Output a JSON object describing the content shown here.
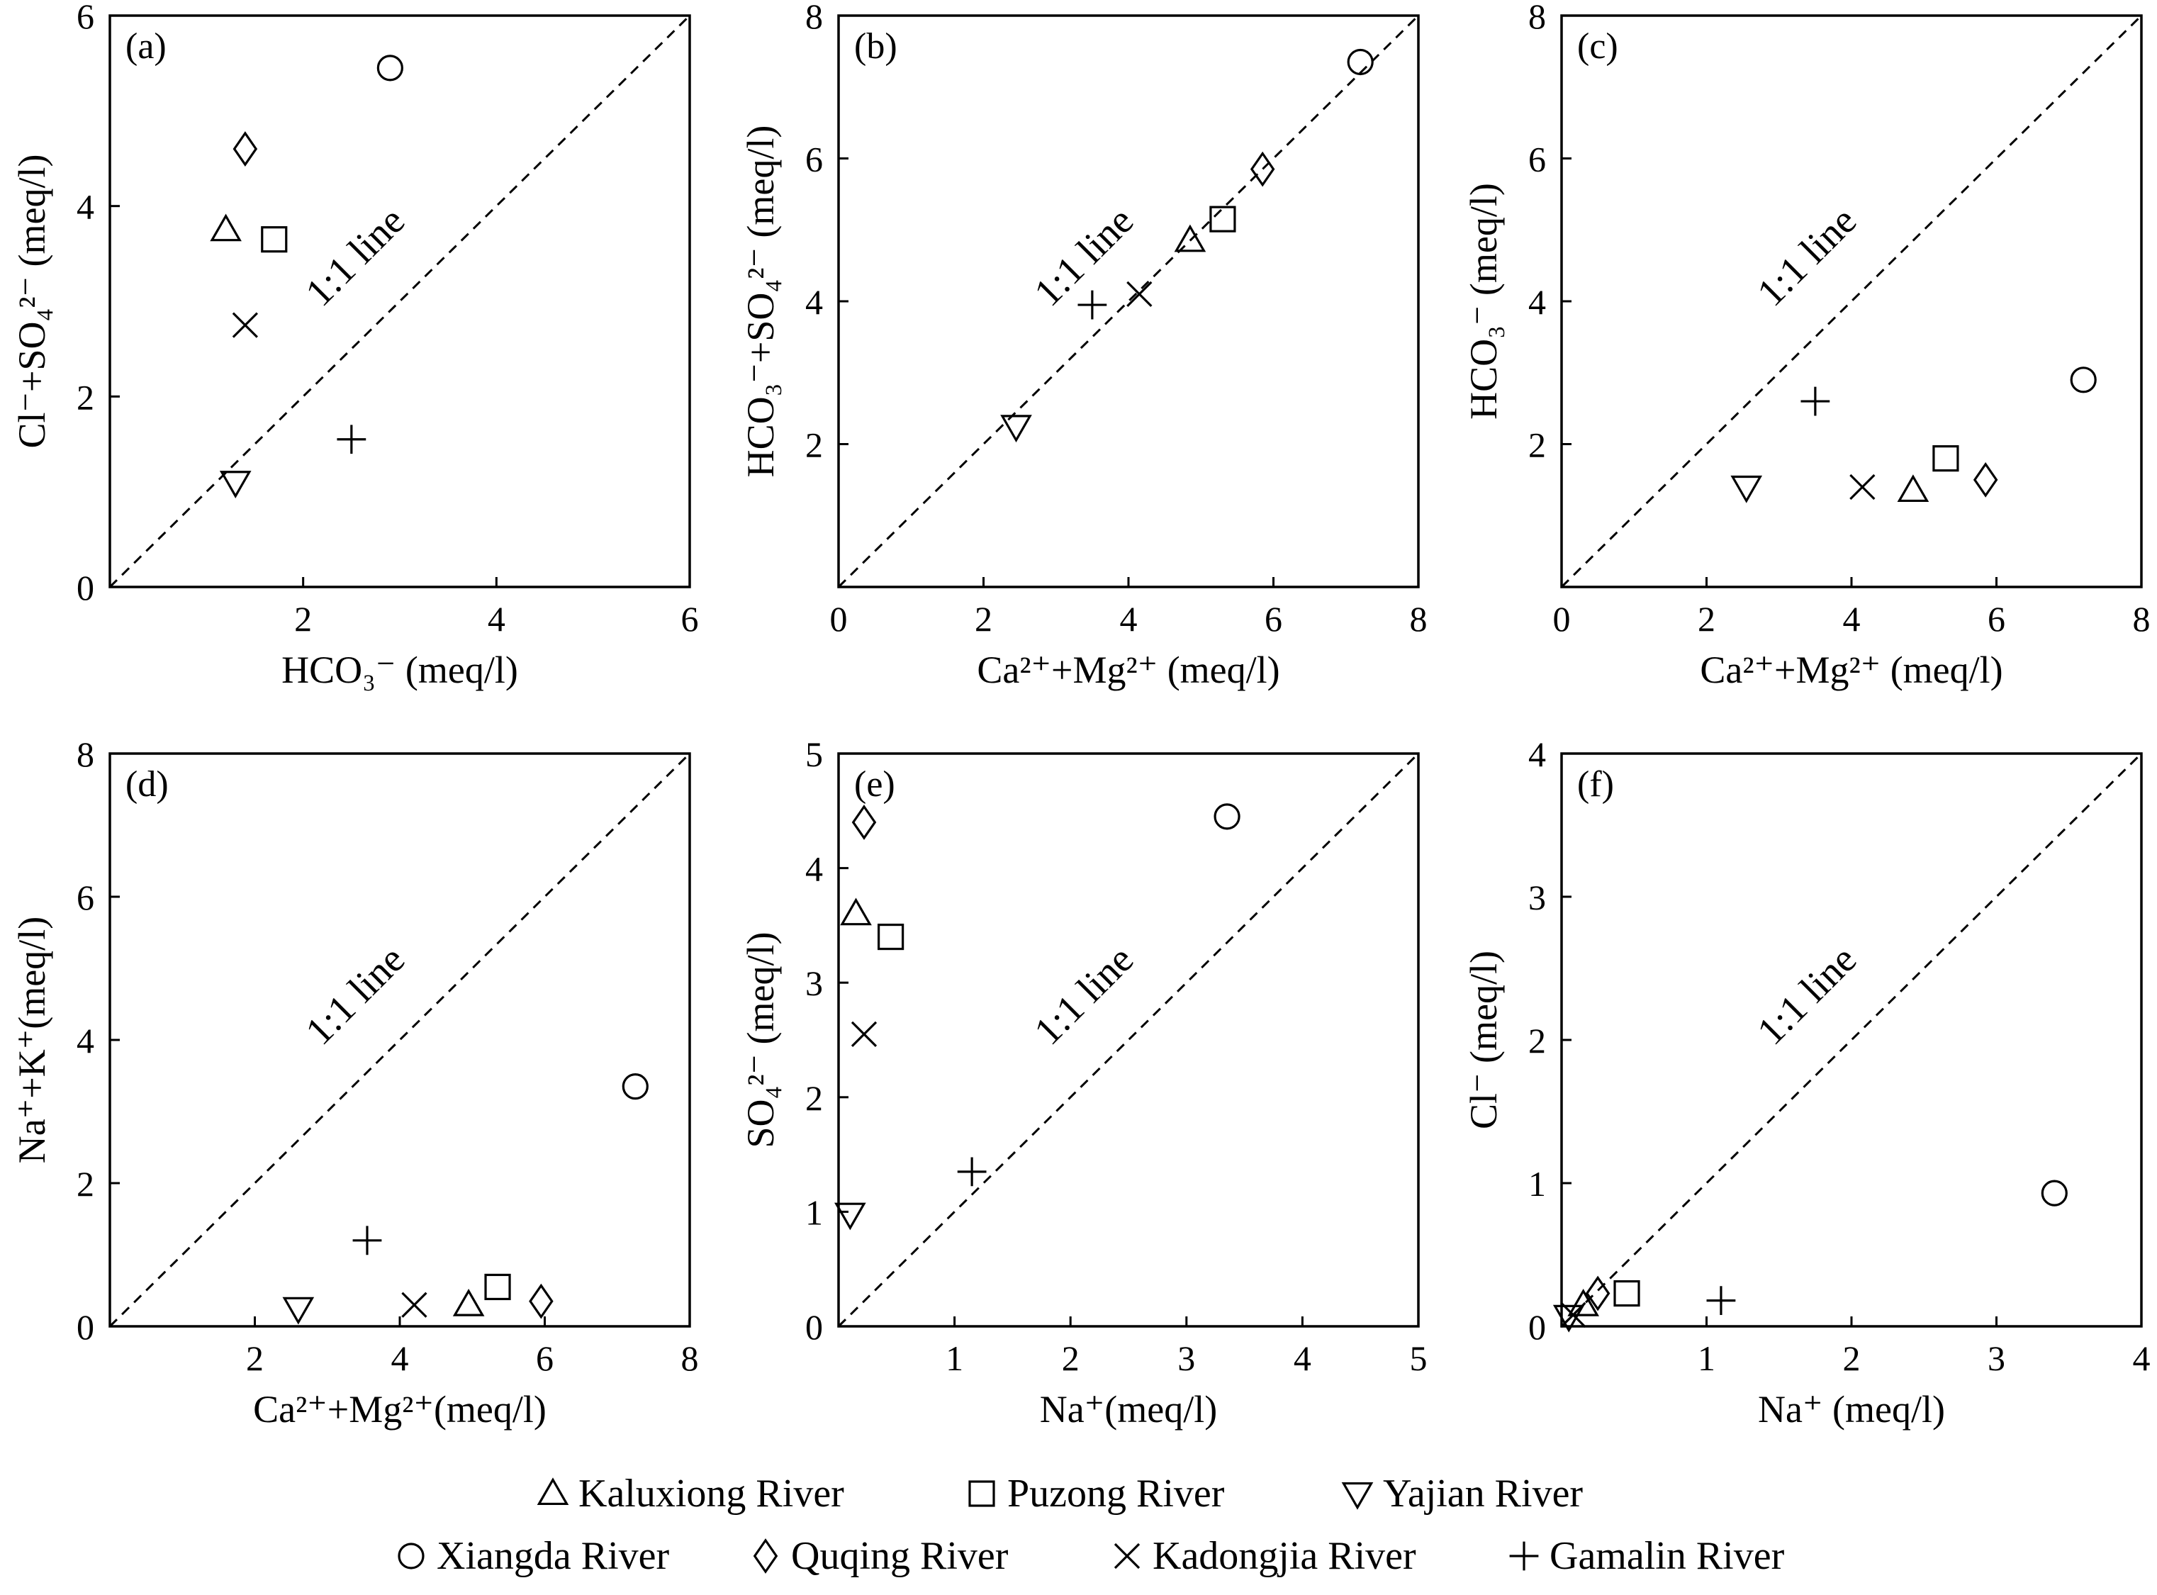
{
  "chart_data": [
    {
      "type": "scatter",
      "panel_label": "(a)",
      "xlabel": "HCO₃⁻ (meq/l)",
      "ylabel": "Cl⁻+SO₄²⁻ (meq/l)",
      "xlim": [
        0,
        6
      ],
      "ylim": [
        0,
        6
      ],
      "xticks": [
        2,
        4,
        6
      ],
      "xtick_labels": [
        "2",
        "4",
        "6"
      ],
      "yticks": [
        0,
        2,
        4,
        6
      ],
      "ytick_labels": [
        "0",
        "2",
        "4",
        "6"
      ],
      "reference_label": "1:1 line",
      "points": [
        {
          "river": "Kaluxiong River",
          "x": 1.2,
          "y": 3.75
        },
        {
          "river": "Puzong River",
          "x": 1.7,
          "y": 3.65
        },
        {
          "river": "Yajian River",
          "x": 1.3,
          "y": 1.1
        },
        {
          "river": "Xiangda River",
          "x": 2.9,
          "y": 5.45
        },
        {
          "river": "Quqing River",
          "x": 1.4,
          "y": 4.6
        },
        {
          "river": "Kadongjia River",
          "x": 1.4,
          "y": 2.75
        },
        {
          "river": "Gamalin River",
          "x": 2.5,
          "y": 1.55
        }
      ]
    },
    {
      "type": "scatter",
      "panel_label": "(b)",
      "xlabel": "Ca²⁺+Mg²⁺ (meq/l)",
      "ylabel": "HCO₃⁻+SO₄²⁻ (meq/l)",
      "xlim": [
        0,
        8
      ],
      "ylim": [
        0,
        8
      ],
      "xticks": [
        0,
        2,
        4,
        6,
        8
      ],
      "xtick_labels": [
        "0",
        "2",
        "4",
        "6",
        "8"
      ],
      "yticks": [
        2,
        4,
        6,
        8
      ],
      "ytick_labels": [
        "2",
        "4",
        "6",
        "8"
      ],
      "reference_label": "1:1 line",
      "points": [
        {
          "river": "Kaluxiong River",
          "x": 4.85,
          "y": 4.85
        },
        {
          "river": "Puzong River",
          "x": 5.3,
          "y": 5.15
        },
        {
          "river": "Yajian River",
          "x": 2.45,
          "y": 2.25
        },
        {
          "river": "Xiangda River",
          "x": 7.2,
          "y": 7.35
        },
        {
          "river": "Quqing River",
          "x": 5.85,
          "y": 5.85
        },
        {
          "river": "Kadongjia River",
          "x": 4.15,
          "y": 4.1
        },
        {
          "river": "Gamalin River",
          "x": 3.5,
          "y": 3.95
        }
      ]
    },
    {
      "type": "scatter",
      "panel_label": "(c)",
      "xlabel": "Ca²⁺+Mg²⁺ (meq/l)",
      "ylabel": "HCO₃⁻ (meq/l)",
      "xlim": [
        0,
        8
      ],
      "ylim": [
        0,
        8
      ],
      "xticks": [
        0,
        2,
        4,
        6,
        8
      ],
      "xtick_labels": [
        "0",
        "2",
        "4",
        "6",
        "8"
      ],
      "yticks": [
        2,
        4,
        6,
        8
      ],
      "ytick_labels": [
        "2",
        "4",
        "6",
        "8"
      ],
      "reference_label": "1:1 line",
      "points": [
        {
          "river": "Kaluxiong River",
          "x": 4.85,
          "y": 1.35
        },
        {
          "river": "Puzong River",
          "x": 5.3,
          "y": 1.8
        },
        {
          "river": "Yajian River",
          "x": 2.55,
          "y": 1.4
        },
        {
          "river": "Xiangda River",
          "x": 7.2,
          "y": 2.9
        },
        {
          "river": "Quqing River",
          "x": 5.85,
          "y": 1.5
        },
        {
          "river": "Kadongjia River",
          "x": 4.15,
          "y": 1.4
        },
        {
          "river": "Gamalin River",
          "x": 3.5,
          "y": 2.6
        }
      ]
    },
    {
      "type": "scatter",
      "panel_label": "(d)",
      "xlabel": "Ca²⁺+Mg²⁺(meq/l)",
      "ylabel": "Na⁺+K⁺(meq/l)",
      "xlim": [
        0,
        8
      ],
      "ylim": [
        0,
        8
      ],
      "xticks": [
        2,
        4,
        6,
        8
      ],
      "xtick_labels": [
        "2",
        "4",
        "6",
        "8"
      ],
      "yticks": [
        0,
        2,
        4,
        6,
        8
      ],
      "ytick_labels": [
        "0",
        "2",
        "4",
        "6",
        "8"
      ],
      "reference_label": "1:1 line",
      "points": [
        {
          "river": "Kaluxiong River",
          "x": 4.95,
          "y": 0.3
        },
        {
          "river": "Puzong River",
          "x": 5.35,
          "y": 0.55
        },
        {
          "river": "Yajian River",
          "x": 2.6,
          "y": 0.25
        },
        {
          "river": "Xiangda River",
          "x": 7.25,
          "y": 3.35
        },
        {
          "river": "Quqing River",
          "x": 5.95,
          "y": 0.35
        },
        {
          "river": "Kadongjia River",
          "x": 4.2,
          "y": 0.3
        },
        {
          "river": "Gamalin River",
          "x": 3.55,
          "y": 1.2
        }
      ]
    },
    {
      "type": "scatter",
      "panel_label": "(e)",
      "xlabel": "Na⁺(meq/l)",
      "ylabel": "SO₄²⁻ (meq/l)",
      "xlim": [
        0,
        5
      ],
      "ylim": [
        0,
        5
      ],
      "xticks": [
        1,
        2,
        3,
        4,
        5
      ],
      "xtick_labels": [
        "1",
        "2",
        "3",
        "4",
        "5"
      ],
      "yticks": [
        0,
        1,
        2,
        3,
        4,
        5
      ],
      "ytick_labels": [
        "0",
        "1",
        "2",
        "3",
        "4",
        "5"
      ],
      "reference_label": "1:1 line",
      "points": [
        {
          "river": "Kaluxiong River",
          "x": 0.15,
          "y": 3.6
        },
        {
          "river": "Puzong River",
          "x": 0.45,
          "y": 3.4
        },
        {
          "river": "Yajian River",
          "x": 0.1,
          "y": 0.98
        },
        {
          "river": "Xiangda River",
          "x": 3.35,
          "y": 4.45
        },
        {
          "river": "Quqing River",
          "x": 0.22,
          "y": 4.4
        },
        {
          "river": "Kadongjia River",
          "x": 0.22,
          "y": 2.55
        },
        {
          "river": "Gamalin River",
          "x": 1.15,
          "y": 1.35
        }
      ]
    },
    {
      "type": "scatter",
      "panel_label": "(f)",
      "xlabel": "Na⁺ (meq/l)",
      "ylabel": "Cl⁻ (meq/l)",
      "xlim": [
        0,
        4
      ],
      "ylim": [
        0,
        4
      ],
      "xticks": [
        1,
        2,
        3,
        4
      ],
      "xtick_labels": [
        "1",
        "2",
        "3",
        "4"
      ],
      "yticks": [
        0,
        1,
        2,
        3,
        4
      ],
      "ytick_labels": [
        "0",
        "1",
        "2",
        "3",
        "4"
      ],
      "reference_label": "1:1 line",
      "points": [
        {
          "river": "Kaluxiong River",
          "x": 0.15,
          "y": 0.15
        },
        {
          "river": "Puzong River",
          "x": 0.45,
          "y": 0.23
        },
        {
          "river": "Yajian River",
          "x": 0.05,
          "y": 0.07
        },
        {
          "river": "Xiangda River",
          "x": 3.4,
          "y": 0.93
        },
        {
          "river": "Quqing River",
          "x": 0.25,
          "y": 0.23
        },
        {
          "river": "Kadongjia River",
          "x": 0.08,
          "y": 0.08
        },
        {
          "river": "Gamalin River",
          "x": 1.1,
          "y": 0.18
        }
      ]
    }
  ],
  "legend": {
    "placement": "bottom-center",
    "entries": [
      {
        "name": "Kaluxiong River",
        "marker": "triangle-up"
      },
      {
        "name": "Puzong River",
        "marker": "square"
      },
      {
        "name": "Yajian River",
        "marker": "triangle-down"
      },
      {
        "name": "Xiangda River",
        "marker": "circle"
      },
      {
        "name": "Quqing River",
        "marker": "diamond"
      },
      {
        "name": "Kadongjia River",
        "marker": "x-cross"
      },
      {
        "name": "Gamalin River",
        "marker": "plus"
      }
    ]
  }
}
